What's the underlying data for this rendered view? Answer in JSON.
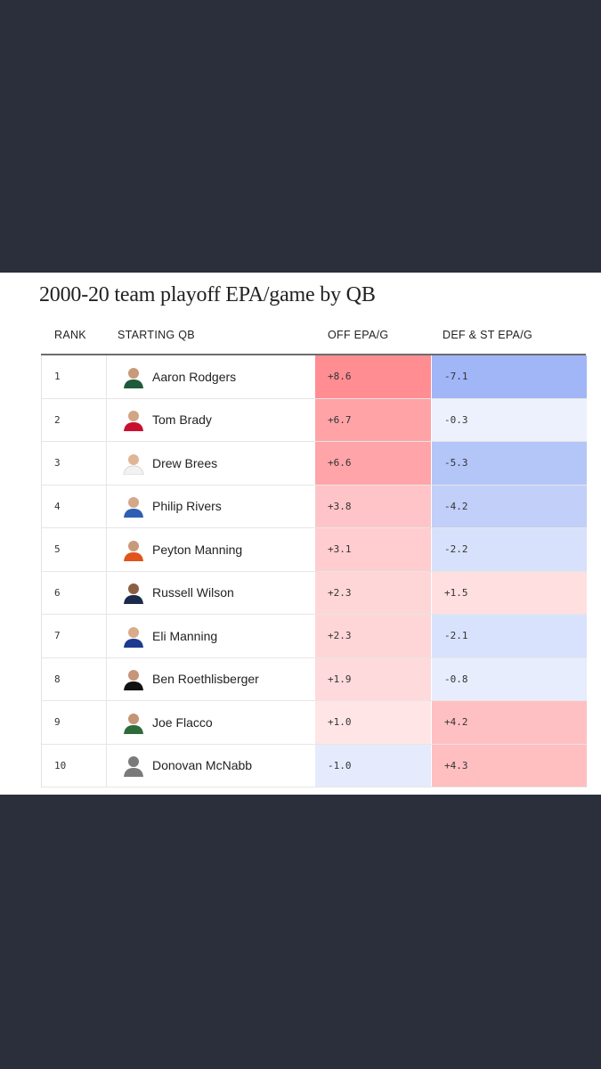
{
  "chart_data": {
    "type": "table",
    "title": "2000-20 team playoff EPA/game by QB",
    "columns": [
      "RANK",
      "STARTING QB",
      "OFF EPA/G",
      "DEF & ST EPA/G"
    ],
    "rows": [
      {
        "rank": "1",
        "qb": "Aaron Rodgers",
        "off": "+8.6",
        "def": "-7.1",
        "off_value": 8.6,
        "def_value": -7.1,
        "jersey": "#1e5a3a"
      },
      {
        "rank": "2",
        "qb": "Tom Brady",
        "off": "+6.7",
        "def": "-0.3",
        "off_value": 6.7,
        "def_value": -0.3,
        "jersey": "#c8102e"
      },
      {
        "rank": "3",
        "qb": "Drew Brees",
        "off": "+6.6",
        "def": "-5.3",
        "off_value": 6.6,
        "def_value": -5.3,
        "jersey": "#f2f2f2"
      },
      {
        "rank": "4",
        "qb": "Philip Rivers",
        "off": "+3.8",
        "def": "-4.2",
        "off_value": 3.8,
        "def_value": -4.2,
        "jersey": "#2f5fb3"
      },
      {
        "rank": "5",
        "qb": "Peyton Manning",
        "off": "+3.1",
        "def": "-2.2",
        "off_value": 3.1,
        "def_value": -2.2,
        "jersey": "#e2531d"
      },
      {
        "rank": "6",
        "qb": "Russell Wilson",
        "off": "+2.3",
        "def": "+1.5",
        "off_value": 2.3,
        "def_value": 1.5,
        "jersey": "#1b2a4a"
      },
      {
        "rank": "7",
        "qb": "Eli Manning",
        "off": "+2.3",
        "def": "-2.1",
        "off_value": 2.3,
        "def_value": -2.1,
        "jersey": "#1d3a8f"
      },
      {
        "rank": "8",
        "qb": "Ben Roethlisberger",
        "off": "+1.9",
        "def": "-0.8",
        "off_value": 1.9,
        "def_value": -0.8,
        "jersey": "#111111"
      },
      {
        "rank": "9",
        "qb": "Joe Flacco",
        "off": "+1.0",
        "def": "+4.2",
        "off_value": 1.0,
        "def_value": 4.2,
        "jersey": "#2e6b3a"
      },
      {
        "rank": "10",
        "qb": "Donovan McNabb",
        "off": "-1.0",
        "def": "+4.3",
        "off_value": -1.0,
        "def_value": 4.3,
        "jersey": "#7a7a7a"
      }
    ]
  },
  "colors": {
    "page_bg": "#2b2f3c",
    "positive_strong": "#ff8d92",
    "negative_strong": "#8fa9f5"
  }
}
